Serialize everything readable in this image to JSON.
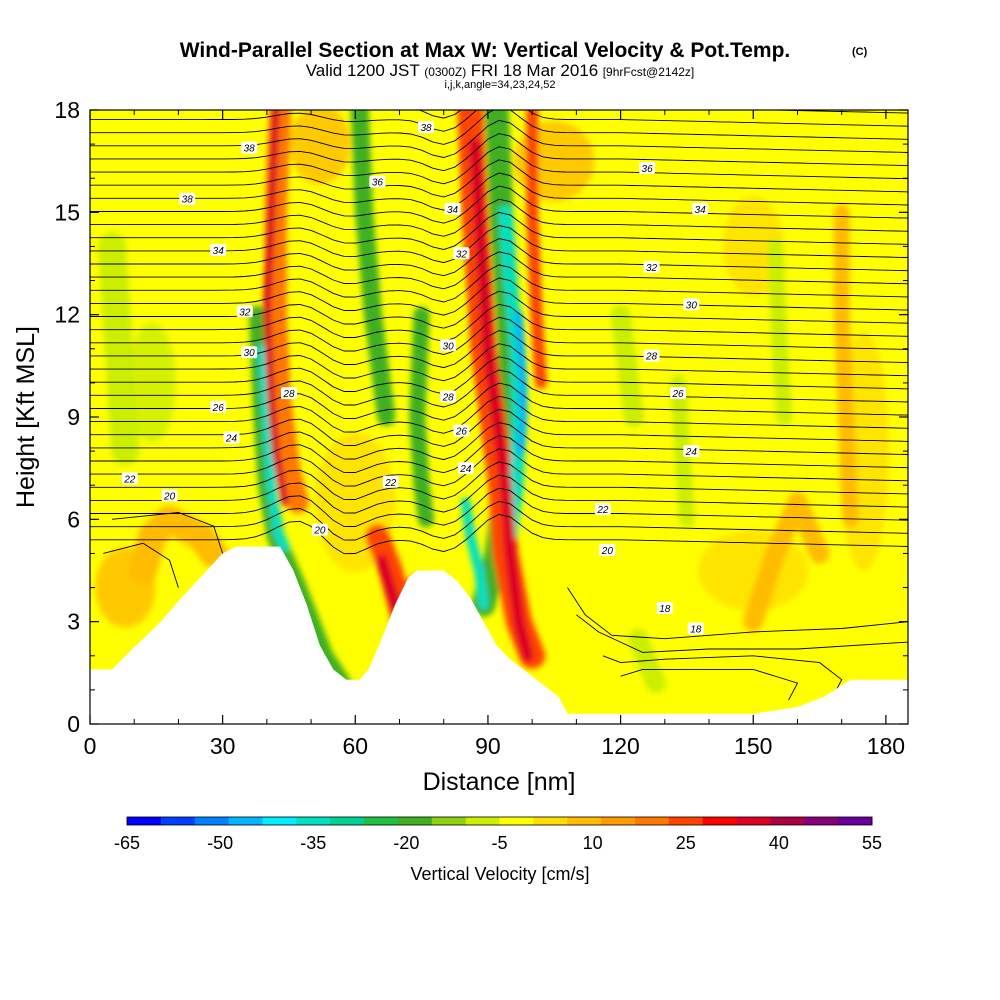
{
  "chart_data": {
    "type": "heatmap",
    "title": "Wind-Parallel Section at Max W: Vertical Velocity & Pot.Temp.",
    "title_mark": "(C)",
    "subtitle": {
      "valid": "Valid 1200 JST",
      "utc": "(0300Z)",
      "date": "FRI 18 Mar 2016",
      "fcst": "[9hrFcst@2142z]"
    },
    "subtitle2": "i,j,k,angle=34,23,24,52",
    "xlabel": "Distance [nm]",
    "ylabel": "Height [Kft MSL]",
    "xlim": [
      0,
      185
    ],
    "ylim": [
      0,
      18
    ],
    "xticks": [
      "0",
      "30",
      "60",
      "90",
      "120",
      "150",
      "180"
    ],
    "yticks": [
      "0",
      "3",
      "6",
      "9",
      "12",
      "15",
      "18"
    ],
    "colorbar": {
      "label": "Vertical Velocity [cm/s]",
      "tick_labels": [
        "-65",
        "-50",
        "-35",
        "-20",
        "-5",
        "10",
        "25",
        "40",
        "55"
      ],
      "colors": [
        "#0000ff",
        "#0040ff",
        "#0080ff",
        "#00b4ff",
        "#00eeff",
        "#00e0c0",
        "#00d090",
        "#20c040",
        "#40b020",
        "#8cd010",
        "#ccee00",
        "#ffff00",
        "#ffdd00",
        "#ffbb00",
        "#ff9900",
        "#ff7700",
        "#ff4400",
        "#ff0000",
        "#dd0022",
        "#aa0044",
        "#880077",
        "#660099"
      ]
    },
    "terrain": [
      [
        0,
        1.6
      ],
      [
        5,
        1.6
      ],
      [
        8,
        2
      ],
      [
        12,
        2.5
      ],
      [
        16,
        3
      ],
      [
        20,
        3.6
      ],
      [
        25,
        4.3
      ],
      [
        30,
        5
      ],
      [
        33,
        5.2
      ],
      [
        43,
        5.2
      ],
      [
        46,
        4.5
      ],
      [
        49,
        3.5
      ],
      [
        52,
        2.3
      ],
      [
        55,
        1.6
      ],
      [
        58,
        1.3
      ],
      [
        61,
        1.3
      ],
      [
        63,
        1.6
      ],
      [
        66,
        2.5
      ],
      [
        69,
        3.5
      ],
      [
        72,
        4.3
      ],
      [
        74,
        4.5
      ],
      [
        80,
        4.5
      ],
      [
        83,
        4.2
      ],
      [
        86,
        3.7
      ],
      [
        89,
        3
      ],
      [
        92,
        2.3
      ],
      [
        95,
        1.9
      ],
      [
        100,
        1.4
      ],
      [
        106,
        0.8
      ],
      [
        108,
        0.3
      ],
      [
        135,
        0.3
      ],
      [
        150,
        0.3
      ],
      [
        160,
        0.5
      ],
      [
        166,
        0.8
      ],
      [
        172,
        1.3
      ],
      [
        185,
        1.3
      ]
    ],
    "updraft_bands": [
      {
        "sign": "up",
        "level": 40,
        "pts": [
          [
            42,
            18
          ],
          [
            41,
            15
          ],
          [
            40,
            12
          ],
          [
            41,
            9.5
          ],
          [
            42,
            8
          ],
          [
            44,
            6.5
          ]
        ],
        "w": 4
      },
      {
        "sign": "up",
        "level": 20,
        "pts": [
          [
            43,
            18
          ],
          [
            42,
            15
          ],
          [
            42,
            12
          ],
          [
            43,
            9.5
          ],
          [
            45,
            7.5
          ],
          [
            47,
            6.5
          ]
        ],
        "w": 11
      },
      {
        "sign": "down",
        "level": -35,
        "pts": [
          [
            39,
            11
          ],
          [
            40,
            9
          ],
          [
            41,
            7
          ],
          [
            42.5,
            5.6
          ],
          [
            44,
            5.2
          ]
        ],
        "w": 5
      },
      {
        "sign": "down",
        "level": -20,
        "pts": [
          [
            38,
            12
          ],
          [
            39,
            9
          ],
          [
            40,
            7
          ],
          [
            42,
            5.5
          ],
          [
            47,
            4
          ],
          [
            53,
            2
          ],
          [
            57,
            1.2
          ]
        ],
        "w": 9
      },
      {
        "sign": "down",
        "level": -20,
        "pts": [
          [
            61,
            18
          ],
          [
            62,
            15
          ],
          [
            64,
            12
          ],
          [
            66,
            10
          ],
          [
            67,
            9
          ]
        ],
        "w": 9
      },
      {
        "sign": "up",
        "level": 40,
        "pts": [
          [
            66,
            4.8
          ],
          [
            69,
            3.5
          ],
          [
            72,
            2.6
          ],
          [
            74,
            3.8
          ]
        ],
        "w": 6
      },
      {
        "sign": "up",
        "level": 25,
        "pts": [
          [
            65,
            5.5
          ],
          [
            68,
            4.5
          ],
          [
            71,
            3
          ],
          [
            74,
            4
          ]
        ],
        "w": 12
      },
      {
        "sign": "up",
        "level": 40,
        "pts": [
          [
            87,
            17
          ],
          [
            88,
            15
          ],
          [
            89,
            13
          ],
          [
            90,
            11
          ],
          [
            92,
            9
          ],
          [
            94,
            7
          ],
          [
            95,
            5
          ],
          [
            97,
            3
          ],
          [
            99,
            2
          ]
        ],
        "w": 6
      },
      {
        "sign": "up",
        "level": 25,
        "pts": [
          [
            86,
            18
          ],
          [
            87,
            15
          ],
          [
            88,
            13
          ],
          [
            89,
            11
          ],
          [
            91,
            9
          ],
          [
            93,
            7
          ],
          [
            94,
            5
          ],
          [
            97,
            3
          ],
          [
            100,
            2
          ]
        ],
        "w": 13
      },
      {
        "sign": "down",
        "level": -50,
        "pts": [
          [
            97,
            12
          ],
          [
            97.5,
            11
          ],
          [
            98,
            10
          ],
          [
            98,
            9
          ],
          [
            97.5,
            8
          ]
        ],
        "w": 4
      },
      {
        "sign": "down",
        "level": -35,
        "pts": [
          [
            94,
            15
          ],
          [
            95,
            13
          ],
          [
            96.5,
            11
          ],
          [
            97,
            9
          ],
          [
            96.5,
            7
          ],
          [
            95,
            5.5
          ]
        ],
        "w": 7
      },
      {
        "sign": "down",
        "level": -20,
        "pts": [
          [
            92,
            18
          ],
          [
            93,
            15
          ],
          [
            94,
            13
          ],
          [
            95,
            11
          ],
          [
            95,
            9
          ],
          [
            94,
            7
          ],
          [
            92,
            5
          ],
          [
            89,
            3.5
          ]
        ],
        "w": 12
      },
      {
        "sign": "down",
        "level": -35,
        "pts": [
          [
            85,
            6.5
          ],
          [
            86,
            5.5
          ],
          [
            88,
            4.5
          ],
          [
            89,
            3.5
          ]
        ],
        "w": 5
      },
      {
        "sign": "up",
        "level": 25,
        "pts": [
          [
            100,
            18
          ],
          [
            100,
            15
          ],
          [
            101,
            12
          ],
          [
            102,
            10
          ]
        ],
        "w": 6
      },
      {
        "sign": "down",
        "level": -20,
        "pts": [
          [
            75,
            12
          ],
          [
            74,
            9
          ],
          [
            75,
            7
          ],
          [
            76,
            6
          ]
        ],
        "w": 8
      },
      {
        "sign": "down",
        "level": -10,
        "pts": [
          [
            5,
            14
          ],
          [
            6,
            12
          ],
          [
            7,
            10
          ],
          [
            8,
            8
          ]
        ],
        "w": 14
      },
      {
        "sign": "down",
        "level": -10,
        "pts": [
          [
            120,
            12
          ],
          [
            122,
            10
          ],
          [
            123,
            9
          ]
        ],
        "w": 10
      },
      {
        "sign": "down",
        "level": -10,
        "pts": [
          [
            133,
            10
          ],
          [
            134,
            8
          ],
          [
            135,
            6
          ]
        ],
        "w": 8
      },
      {
        "sign": "down",
        "level": -10,
        "pts": [
          [
            124,
            2.5
          ],
          [
            126,
            1.8
          ],
          [
            128,
            1.2
          ]
        ],
        "w": 10
      },
      {
        "sign": "down",
        "level": -10,
        "pts": [
          [
            155,
            14
          ],
          [
            156,
            11
          ],
          [
            157,
            9
          ]
        ],
        "w": 8
      },
      {
        "sign": "up",
        "level": 10,
        "pts": [
          [
            170,
            15
          ],
          [
            170,
            12
          ],
          [
            171,
            9
          ],
          [
            172,
            6
          ]
        ],
        "w": 8
      },
      {
        "sign": "up",
        "level": 10,
        "pts": [
          [
            12,
            4.5
          ],
          [
            14,
            5.5
          ],
          [
            18,
            6
          ],
          [
            25,
            5.5
          ],
          [
            28,
            5
          ]
        ],
        "w": 14
      },
      {
        "sign": "up",
        "level": 10,
        "pts": [
          [
            150,
            3
          ],
          [
            155,
            5
          ],
          [
            160,
            6.5
          ],
          [
            165,
            5
          ]
        ],
        "w": 10
      }
    ],
    "contour_labels": [
      {
        "text": "38",
        "x": 36,
        "y": 16.9
      },
      {
        "text": "38",
        "x": 22,
        "y": 15.4
      },
      {
        "text": "36",
        "x": 65,
        "y": 15.9
      },
      {
        "text": "38",
        "x": 76,
        "y": 17.5
      },
      {
        "text": "36",
        "x": 126,
        "y": 16.3
      },
      {
        "text": "34",
        "x": 29,
        "y": 13.9
      },
      {
        "text": "34",
        "x": 82,
        "y": 15.1
      },
      {
        "text": "34",
        "x": 138,
        "y": 15.1
      },
      {
        "text": "32",
        "x": 35,
        "y": 12.1
      },
      {
        "text": "32",
        "x": 84,
        "y": 13.8
      },
      {
        "text": "32",
        "x": 127,
        "y": 13.4
      },
      {
        "text": "30",
        "x": 36,
        "y": 10.9
      },
      {
        "text": "30",
        "x": 81,
        "y": 11.1
      },
      {
        "text": "30",
        "x": 136,
        "y": 12.3
      },
      {
        "text": "28",
        "x": 45,
        "y": 9.7
      },
      {
        "text": "28",
        "x": 81,
        "y": 9.6
      },
      {
        "text": "28",
        "x": 127,
        "y": 10.8
      },
      {
        "text": "26",
        "x": 29,
        "y": 9.3
      },
      {
        "text": "26",
        "x": 84,
        "y": 8.6
      },
      {
        "text": "26",
        "x": 133,
        "y": 9.7
      },
      {
        "text": "24",
        "x": 32,
        "y": 8.4
      },
      {
        "text": "24",
        "x": 85,
        "y": 7.5
      },
      {
        "text": "24",
        "x": 136,
        "y": 8
      },
      {
        "text": "22",
        "x": 9,
        "y": 7.2
      },
      {
        "text": "22",
        "x": 68,
        "y": 7.1
      },
      {
        "text": "22",
        "x": 116,
        "y": 6.3
      },
      {
        "text": "20",
        "x": 18,
        "y": 6.7
      },
      {
        "text": "20",
        "x": 52,
        "y": 5.7
      },
      {
        "text": "20",
        "x": 117,
        "y": 5.1
      },
      {
        "text": "18",
        "x": 130,
        "y": 3.4
      },
      {
        "text": "18",
        "x": 137,
        "y": 2.8
      }
    ]
  }
}
